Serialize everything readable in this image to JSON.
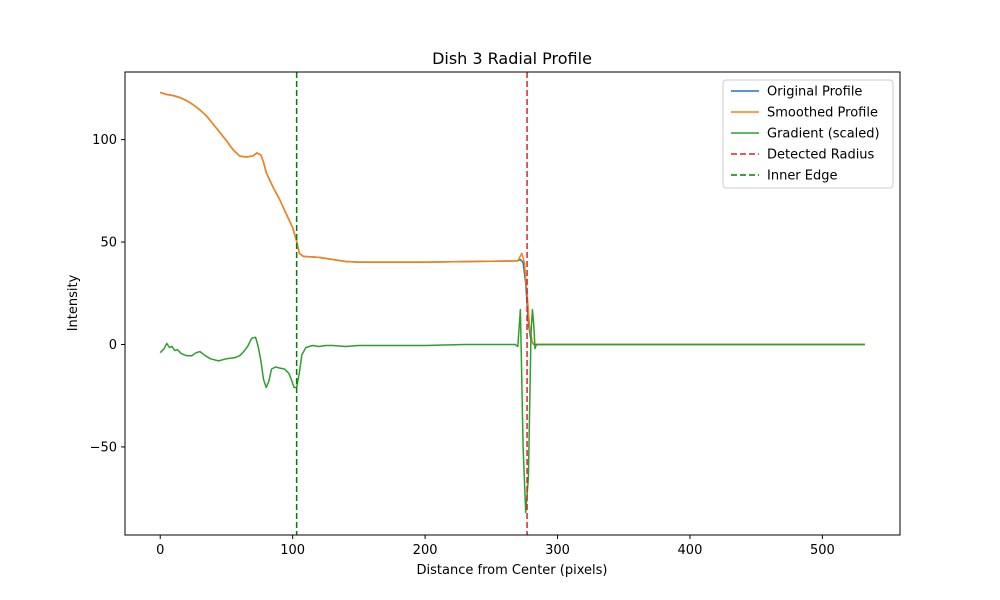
{
  "chart_data": {
    "type": "line",
    "title": "Dish 3 Radial Profile",
    "xlabel": "Distance from Center (pixels)",
    "ylabel": "Intensity",
    "xlim": [
      -26.6,
      558.6
    ],
    "ylim": [
      -93,
      133
    ],
    "xticks": [
      0,
      100,
      200,
      300,
      400,
      500
    ],
    "yticks": [
      -50,
      0,
      50,
      100
    ],
    "ytick_labels": [
      "−50",
      "0",
      "50",
      "100"
    ],
    "grid": false,
    "legend_position": "top-right",
    "series": [
      {
        "name": "Original Profile",
        "color": "#1f77b4",
        "style": "solid",
        "points": [
          [
            0,
            123
          ],
          [
            5,
            122
          ],
          [
            10,
            121.5
          ],
          [
            15,
            120.5
          ],
          [
            20,
            119
          ],
          [
            25,
            117
          ],
          [
            30,
            114.5
          ],
          [
            35,
            111.5
          ],
          [
            40,
            107.5
          ],
          [
            45,
            103.5
          ],
          [
            50,
            99.5
          ],
          [
            55,
            95
          ],
          [
            60,
            92
          ],
          [
            65,
            91.5
          ],
          [
            70,
            92
          ],
          [
            73,
            93.5
          ],
          [
            76,
            92.5
          ],
          [
            78,
            89
          ],
          [
            80,
            84
          ],
          [
            85,
            77
          ],
          [
            90,
            71
          ],
          [
            95,
            64
          ],
          [
            100,
            57
          ],
          [
            103,
            50.5
          ],
          [
            105,
            44.5
          ],
          [
            108,
            43
          ],
          [
            120,
            42.5
          ],
          [
            140,
            40.5
          ],
          [
            150,
            40.2
          ],
          [
            200,
            40.2
          ],
          [
            250,
            40.6
          ],
          [
            270,
            40.8
          ],
          [
            272,
            41.5
          ],
          [
            274,
            40
          ],
          [
            276,
            30
          ],
          [
            278,
            10
          ],
          [
            280,
            2
          ],
          [
            282,
            0
          ],
          [
            300,
            0
          ],
          [
            400,
            0
          ],
          [
            500,
            0
          ],
          [
            532,
            0
          ]
        ]
      },
      {
        "name": "Smoothed Profile",
        "color": "#ff7f0e",
        "style": "solid",
        "points": [
          [
            0,
            123
          ],
          [
            5,
            122
          ],
          [
            10,
            121.5
          ],
          [
            15,
            120.5
          ],
          [
            20,
            119
          ],
          [
            25,
            117
          ],
          [
            30,
            114.5
          ],
          [
            35,
            111.5
          ],
          [
            40,
            107.5
          ],
          [
            45,
            103.5
          ],
          [
            50,
            99.5
          ],
          [
            55,
            95
          ],
          [
            60,
            92
          ],
          [
            65,
            91.5
          ],
          [
            70,
            92
          ],
          [
            73,
            93.5
          ],
          [
            76,
            92.5
          ],
          [
            78,
            89
          ],
          [
            80,
            84
          ],
          [
            85,
            77
          ],
          [
            90,
            71
          ],
          [
            95,
            64
          ],
          [
            100,
            57
          ],
          [
            103,
            50.5
          ],
          [
            105,
            44.5
          ],
          [
            108,
            43
          ],
          [
            120,
            42.5
          ],
          [
            140,
            40.5
          ],
          [
            150,
            40.2
          ],
          [
            200,
            40.2
          ],
          [
            250,
            40.6
          ],
          [
            270,
            40.8
          ],
          [
            273,
            44.5
          ],
          [
            275,
            40
          ],
          [
            277,
            25
          ],
          [
            279,
            8
          ],
          [
            281,
            1
          ],
          [
            283,
            0
          ],
          [
            300,
            0
          ],
          [
            400,
            0
          ],
          [
            500,
            0
          ],
          [
            532,
            0
          ]
        ]
      },
      {
        "name": "Gradient (scaled)",
        "color": "#2ca02c",
        "style": "solid",
        "points": [
          [
            0,
            -4
          ],
          [
            3,
            -2
          ],
          [
            5,
            0.5
          ],
          [
            7,
            -1.5
          ],
          [
            9,
            -1
          ],
          [
            11,
            -3
          ],
          [
            13,
            -2.5
          ],
          [
            16,
            -4.5
          ],
          [
            20,
            -5.5
          ],
          [
            24,
            -5.5
          ],
          [
            27,
            -4
          ],
          [
            30,
            -3.5
          ],
          [
            34,
            -5.5
          ],
          [
            38,
            -7
          ],
          [
            44,
            -8
          ],
          [
            50,
            -7
          ],
          [
            56,
            -6.5
          ],
          [
            60,
            -5.5
          ],
          [
            63,
            -3.5
          ],
          [
            66,
            -1
          ],
          [
            69,
            3
          ],
          [
            72,
            3.5
          ],
          [
            74,
            -1
          ],
          [
            76,
            -8
          ],
          [
            78,
            -17
          ],
          [
            80,
            -21
          ],
          [
            82,
            -18
          ],
          [
            84,
            -12
          ],
          [
            87,
            -11
          ],
          [
            90,
            -11.5
          ],
          [
            94,
            -12
          ],
          [
            97,
            -14
          ],
          [
            99,
            -17
          ],
          [
            101,
            -21
          ],
          [
            103,
            -21
          ],
          [
            105,
            -14
          ],
          [
            107,
            -5
          ],
          [
            110,
            -1.5
          ],
          [
            115,
            -0.5
          ],
          [
            120,
            -1
          ],
          [
            125,
            -0.5
          ],
          [
            130,
            -0.5
          ],
          [
            140,
            -1
          ],
          [
            150,
            -0.5
          ],
          [
            170,
            -0.5
          ],
          [
            200,
            -0.5
          ],
          [
            230,
            0
          ],
          [
            260,
            0
          ],
          [
            268,
            0
          ],
          [
            270,
            -1
          ],
          [
            272,
            17
          ],
          [
            274,
            -50
          ],
          [
            276,
            -82
          ],
          [
            278,
            -65
          ],
          [
            279,
            -30
          ],
          [
            280,
            5
          ],
          [
            281,
            17
          ],
          [
            282,
            10
          ],
          [
            283,
            -2
          ],
          [
            284,
            0
          ],
          [
            300,
            0
          ],
          [
            400,
            0
          ],
          [
            500,
            0
          ],
          [
            532,
            0
          ]
        ]
      },
      {
        "name": "Detected Radius",
        "color": "#d62728",
        "style": "dashed",
        "vline_x": 277
      },
      {
        "name": "Inner Edge",
        "color": "#008000",
        "style": "dashed",
        "vline_x": 103
      }
    ]
  }
}
